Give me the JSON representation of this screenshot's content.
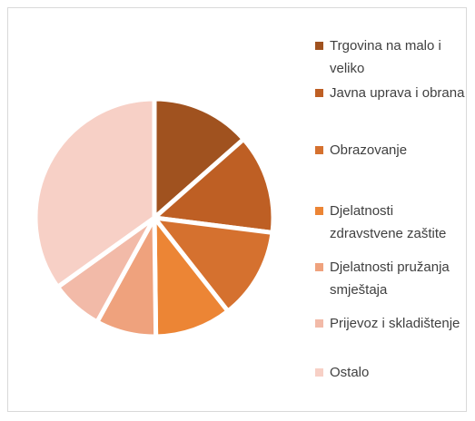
{
  "chart_data": {
    "type": "pie",
    "categories": [
      "Trgovina na malo i veliko",
      "Javna uprava i obrana",
      "Obrazovanje",
      "Djelatnosti zdravstvene zaštite",
      "Djelatnosti pružanja smještaja",
      "Prijevoz i skladištenje",
      "Ostalo"
    ],
    "values": [
      13.5,
      13.5,
      12.4,
      10.4,
      8.2,
      7.1,
      34.9
    ],
    "colors": [
      "#a0521f",
      "#be5f24",
      "#d5712f",
      "#ec8535",
      "#efa27d",
      "#f2baa8",
      "#f7d0c6"
    ],
    "legend": "right"
  }
}
